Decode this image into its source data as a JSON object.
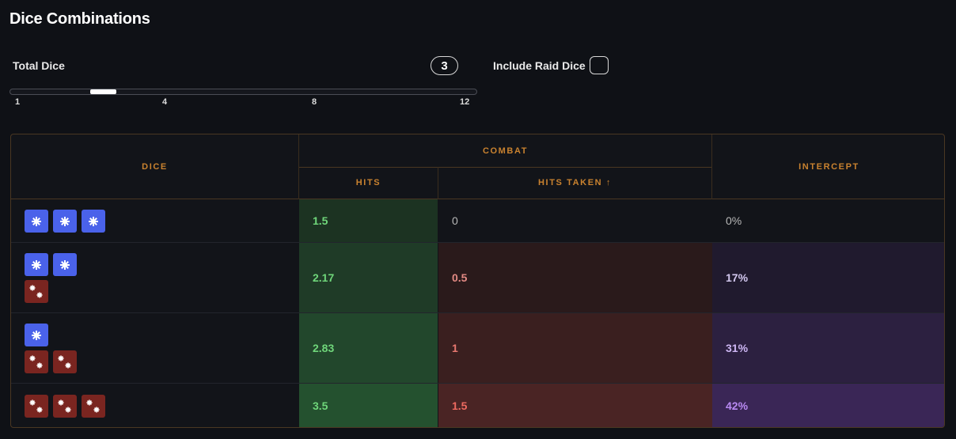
{
  "title": "Dice Combinations",
  "total_dice": {
    "label": "Total Dice",
    "value": "3",
    "min": 1,
    "max": 12,
    "ticks": [
      "1",
      "4",
      "8",
      "12"
    ]
  },
  "raid": {
    "label": "Include Raid Dice",
    "checked": false
  },
  "table": {
    "headers": {
      "dice": "DICE",
      "combat": "COMBAT",
      "hits": "HITS",
      "hits_taken": "HITS TAKEN ↑",
      "intercept": "INTERCEPT"
    },
    "rows": [
      {
        "dice": [
          [
            "blue-die",
            "blue-die",
            "blue-die"
          ]
        ],
        "hits": "1.5",
        "hits_taken": "0",
        "intercept": "0%"
      },
      {
        "dice": [
          [
            "blue-die",
            "blue-die"
          ],
          [
            "red-die"
          ]
        ],
        "hits": "2.17",
        "hits_taken": "0.5",
        "intercept": "17%"
      },
      {
        "dice": [
          [
            "blue-die"
          ],
          [
            "red-die",
            "red-die"
          ]
        ],
        "hits": "2.83",
        "hits_taken": "1",
        "intercept": "31%"
      },
      {
        "dice": [
          [
            "red-die",
            "red-die",
            "red-die"
          ]
        ],
        "hits": "3.5",
        "hits_taken": "1.5",
        "intercept": "42%"
      }
    ]
  },
  "colors": {
    "accent": "#c9822f",
    "blue_die": "#4a62ea",
    "red_die": "#7a2520"
  }
}
